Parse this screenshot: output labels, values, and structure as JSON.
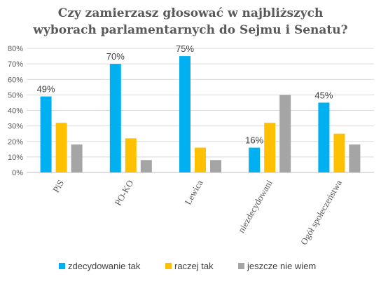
{
  "chart_data": {
    "type": "bar",
    "title_lines": [
      "Czy zamierzasz głosować w najbliższych",
      "wyborach parlamentarnych do Sejmu i Senatu?"
    ],
    "categories": [
      "PiS",
      "PO-KO",
      "Lewica",
      "niezdecydowani",
      "Ogół społeczeństwa"
    ],
    "series": [
      {
        "name": "zdecydowanie tak",
        "color": "#00b0f0",
        "values": [
          49,
          70,
          75,
          16,
          45
        ]
      },
      {
        "name": "raczej tak",
        "color": "#ffc000",
        "values": [
          32,
          22,
          16,
          32,
          25
        ]
      },
      {
        "name": "jeszcze nie wiem",
        "color": "#a5a5a5",
        "values": [
          18,
          8,
          8,
          50,
          18
        ]
      }
    ],
    "data_labels": {
      "series": 0,
      "texts": [
        "49%",
        "70%",
        "75%",
        "16%",
        "45%"
      ]
    },
    "ylim": [
      0,
      80
    ],
    "y_ticks": [
      "0%",
      "10%",
      "20%",
      "30%",
      "40%",
      "50%",
      "60%",
      "70%",
      "80%"
    ],
    "grid": true,
    "legend_position": "bottom"
  }
}
